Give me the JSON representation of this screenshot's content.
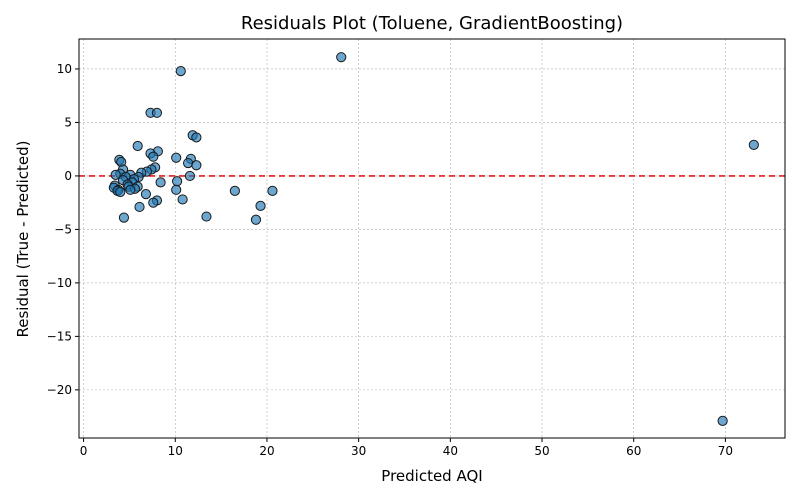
{
  "chart_data": {
    "type": "scatter",
    "title": "Residuals Plot (Toluene, GradientBoosting)",
    "xlabel": "Predicted AQI",
    "ylabel": "Residual (True - Predicted)",
    "xlim": [
      -0.5,
      76.5
    ],
    "ylim": [
      -24.5,
      12.8
    ],
    "xticks": [
      0,
      10,
      20,
      30,
      40,
      50,
      60,
      70
    ],
    "yticks": [
      -20,
      -15,
      -10,
      -5,
      0,
      5,
      10
    ],
    "grid": true,
    "reference_line": {
      "y": 0,
      "color": "#e41a1c",
      "style": "dashed"
    },
    "point_color": "#1f77b4",
    "points": [
      {
        "x": 28.1,
        "y": 11.1
      },
      {
        "x": 10.6,
        "y": 9.8
      },
      {
        "x": 7.3,
        "y": 5.9
      },
      {
        "x": 8.0,
        "y": 5.9
      },
      {
        "x": 11.9,
        "y": 3.8
      },
      {
        "x": 12.3,
        "y": 3.6
      },
      {
        "x": 73.1,
        "y": 2.9
      },
      {
        "x": 5.9,
        "y": 2.8
      },
      {
        "x": 8.1,
        "y": 2.3
      },
      {
        "x": 7.3,
        "y": 2.1
      },
      {
        "x": 7.6,
        "y": 1.8
      },
      {
        "x": 10.1,
        "y": 1.7
      },
      {
        "x": 11.7,
        "y": 1.6
      },
      {
        "x": 3.9,
        "y": 1.5
      },
      {
        "x": 4.1,
        "y": 1.3
      },
      {
        "x": 11.4,
        "y": 1.2
      },
      {
        "x": 12.3,
        "y": 1.0
      },
      {
        "x": 7.8,
        "y": 0.8
      },
      {
        "x": 7.4,
        "y": 0.6
      },
      {
        "x": 4.3,
        "y": 0.6
      },
      {
        "x": 6.9,
        "y": 0.4
      },
      {
        "x": 6.3,
        "y": 0.3
      },
      {
        "x": 4.0,
        "y": 0.2
      },
      {
        "x": 3.5,
        "y": 0.1
      },
      {
        "x": 5.1,
        "y": 0.1
      },
      {
        "x": 11.6,
        "y": 0.0
      },
      {
        "x": 4.6,
        "y": -0.1
      },
      {
        "x": 6.0,
        "y": -0.1
      },
      {
        "x": 5.5,
        "y": -0.3
      },
      {
        "x": 4.3,
        "y": -0.4
      },
      {
        "x": 10.2,
        "y": -0.5
      },
      {
        "x": 8.4,
        "y": -0.6
      },
      {
        "x": 5.3,
        "y": -0.6
      },
      {
        "x": 4.8,
        "y": -0.8
      },
      {
        "x": 3.4,
        "y": -0.9
      },
      {
        "x": 5.9,
        "y": -1.0
      },
      {
        "x": 4.9,
        "y": -1.0
      },
      {
        "x": 3.3,
        "y": -1.1
      },
      {
        "x": 5.6,
        "y": -1.2
      },
      {
        "x": 3.8,
        "y": -1.3
      },
      {
        "x": 10.1,
        "y": -1.3
      },
      {
        "x": 5.1,
        "y": -1.3
      },
      {
        "x": 16.5,
        "y": -1.4
      },
      {
        "x": 20.6,
        "y": -1.4
      },
      {
        "x": 3.7,
        "y": -1.4
      },
      {
        "x": 4.0,
        "y": -1.5
      },
      {
        "x": 6.8,
        "y": -1.7
      },
      {
        "x": 10.8,
        "y": -2.2
      },
      {
        "x": 8.0,
        "y": -2.3
      },
      {
        "x": 7.6,
        "y": -2.5
      },
      {
        "x": 19.3,
        "y": -2.8
      },
      {
        "x": 6.1,
        "y": -2.9
      },
      {
        "x": 13.4,
        "y": -3.8
      },
      {
        "x": 4.4,
        "y": -3.9
      },
      {
        "x": 18.8,
        "y": -4.1
      },
      {
        "x": 69.7,
        "y": -22.9
      }
    ]
  }
}
